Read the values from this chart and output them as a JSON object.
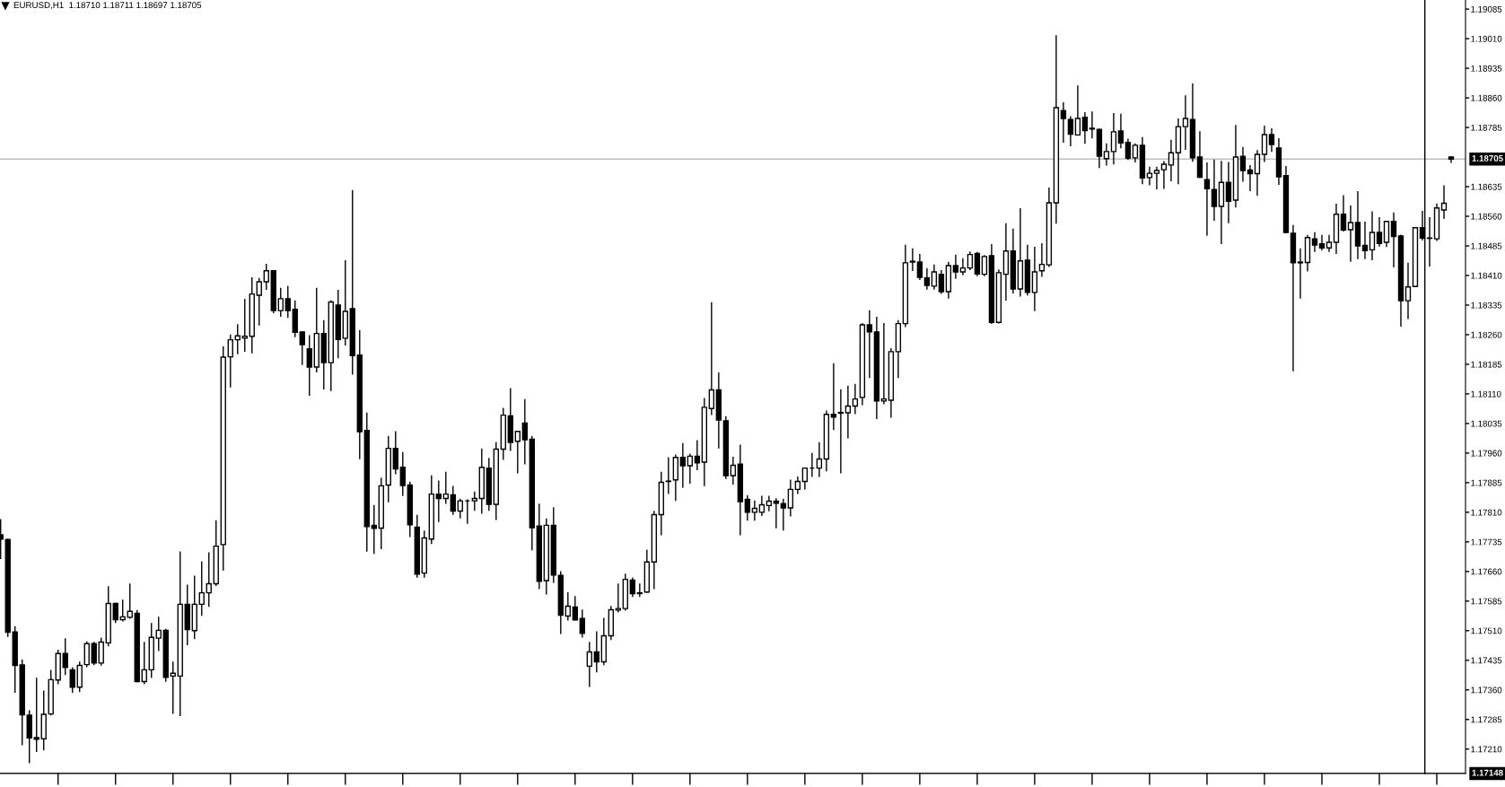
{
  "chart_data": {
    "type": "candlestick",
    "title": "EURUSD,H1  1.18710 1.18711 1.18697 1.18705",
    "color": "#000000",
    "categories": [
      null,
      null,
      null,
      null,
      null,
      null,
      null,
      null,
      null,
      null,
      null,
      null,
      null,
      null,
      null,
      null,
      null,
      null,
      null,
      null,
      null,
      null,
      null,
      null,
      null,
      null,
      null,
      null,
      null,
      null,
      null,
      null,
      null,
      null,
      null,
      null,
      null,
      null,
      null,
      null,
      null,
      null,
      null,
      null,
      null,
      null,
      null,
      null,
      null,
      null,
      null,
      null,
      null,
      null,
      null,
      null,
      null,
      null,
      null,
      null,
      null,
      null,
      null,
      null,
      null,
      null,
      null,
      null,
      null,
      null,
      null,
      null,
      null,
      null,
      null,
      null,
      null,
      null,
      null,
      null,
      null,
      null,
      null,
      null,
      null,
      null,
      null,
      null,
      null,
      null,
      null,
      null,
      null,
      null,
      null,
      null,
      null,
      null,
      null,
      null,
      null,
      null,
      null,
      null,
      null,
      null,
      null,
      null,
      null,
      null,
      null,
      null,
      null,
      null,
      null,
      null,
      null,
      null,
      null,
      null,
      null,
      null,
      null,
      null,
      null,
      null,
      null,
      null,
      null,
      null,
      null,
      null,
      null,
      null,
      null,
      null,
      null,
      null,
      null,
      null,
      null,
      null,
      null,
      null,
      null,
      null,
      null,
      null,
      null,
      null,
      null,
      null,
      null,
      null,
      null,
      null,
      null,
      null,
      null,
      null,
      null,
      null,
      null,
      null,
      null,
      null,
      null,
      null,
      null,
      null,
      null,
      null,
      null,
      null,
      null,
      null,
      null,
      null,
      null,
      null,
      null,
      null,
      null,
      null,
      null,
      null,
      null,
      null,
      null,
      null,
      null,
      null,
      null,
      null,
      null,
      null,
      null,
      null,
      null,
      null,
      null,
      null,
      null
    ],
    "ohlc": [
      [
        1.17753,
        1.17791,
        1.17693,
        1.17742
      ],
      [
        1.17741,
        1.17741,
        1.17496,
        1.17506
      ],
      [
        1.17507,
        1.1752,
        1.17354,
        1.17422
      ],
      [
        1.17423,
        1.17435,
        1.17221,
        1.17297
      ],
      [
        1.17296,
        1.17307,
        1.17176,
        1.17238
      ],
      [
        1.17239,
        1.17389,
        1.17204,
        1.17235
      ],
      [
        1.17236,
        1.17357,
        1.17208,
        1.17298
      ],
      [
        1.17299,
        1.17409,
        1.17297,
        1.17386
      ],
      [
        1.17385,
        1.1746,
        1.17376,
        1.17452
      ],
      [
        1.17452,
        1.17489,
        1.17399,
        1.17417
      ],
      [
        1.17411,
        1.17416,
        1.17354,
        1.17367
      ],
      [
        1.17367,
        1.1743,
        1.17356,
        1.17422
      ],
      [
        1.17424,
        1.17481,
        1.17419,
        1.17477
      ],
      [
        1.17477,
        1.1748,
        1.17424,
        1.17428
      ],
      [
        1.17428,
        1.17491,
        1.17423,
        1.17481
      ],
      [
        1.17479,
        1.17621,
        1.17472,
        1.17579
      ],
      [
        1.17579,
        1.17579,
        1.17531,
        1.17538
      ],
      [
        1.17538,
        1.17587,
        1.17535,
        1.17545
      ],
      [
        1.17544,
        1.17628,
        1.17542,
        1.17559
      ],
      [
        1.17554,
        1.17561,
        1.17381,
        1.17381
      ],
      [
        1.17381,
        1.1748,
        1.17376,
        1.17411
      ],
      [
        1.17411,
        1.17528,
        1.17392,
        1.17493
      ],
      [
        1.17491,
        1.17544,
        1.1746,
        1.17511
      ],
      [
        1.17511,
        1.17513,
        1.17382,
        1.17392
      ],
      [
        1.17395,
        1.1743,
        1.17301,
        1.17402
      ],
      [
        1.17395,
        1.17709,
        1.17295,
        1.17577
      ],
      [
        1.17577,
        1.17625,
        1.17475,
        1.17513
      ],
      [
        1.1751,
        1.17648,
        1.1749,
        1.17577
      ],
      [
        1.17577,
        1.17684,
        1.17549,
        1.17606
      ],
      [
        1.17606,
        1.17707,
        1.17572,
        1.17629
      ],
      [
        1.17629,
        1.17788,
        1.17625,
        1.17724
      ],
      [
        1.17728,
        1.18229,
        1.17664,
        1.18203
      ],
      [
        1.18204,
        1.18259,
        1.18128,
        1.18247
      ],
      [
        1.18247,
        1.18285,
        1.18212,
        1.18257
      ],
      [
        1.18251,
        1.18349,
        1.18218,
        1.18256
      ],
      [
        1.18256,
        1.18404,
        1.18214,
        1.18363
      ],
      [
        1.1836,
        1.18402,
        1.18285,
        1.18394
      ],
      [
        1.18394,
        1.18438,
        1.18375,
        1.18422
      ],
      [
        1.18422,
        1.18422,
        1.18316,
        1.18321
      ],
      [
        1.18321,
        1.18377,
        1.18307,
        1.18351
      ],
      [
        1.18351,
        1.18382,
        1.18304,
        1.18321
      ],
      [
        1.18324,
        1.18345,
        1.18255,
        1.18266
      ],
      [
        1.18267,
        1.18267,
        1.18185,
        1.18235
      ],
      [
        1.18224,
        1.18257,
        1.18107,
        1.18178
      ],
      [
        1.18178,
        1.18377,
        1.18166,
        1.18263
      ],
      [
        1.18263,
        1.18295,
        1.18123,
        1.18189
      ],
      [
        1.18189,
        1.18345,
        1.18119,
        1.18343
      ],
      [
        1.18335,
        1.18372,
        1.18202,
        1.18248
      ],
      [
        1.18251,
        1.18447,
        1.18234,
        1.18319
      ],
      [
        1.18326,
        1.18625,
        1.1816,
        1.18207
      ],
      [
        1.18208,
        1.1827,
        1.17946,
        1.18014
      ],
      [
        1.18017,
        1.18061,
        1.17712,
        1.17774
      ],
      [
        1.17777,
        1.17827,
        1.17706,
        1.17769
      ],
      [
        1.1777,
        1.17896,
        1.17718,
        1.17877
      ],
      [
        1.17879,
        1.18002,
        1.17837,
        1.17972
      ],
      [
        1.17972,
        1.18014,
        1.17908,
        1.1792
      ],
      [
        1.17924,
        1.17961,
        1.17853,
        1.17878
      ],
      [
        1.17879,
        1.17886,
        1.17749,
        1.17778
      ],
      [
        1.17772,
        1.17802,
        1.17646,
        1.17653
      ],
      [
        1.17656,
        1.17762,
        1.17646,
        1.17745
      ],
      [
        1.17742,
        1.17902,
        1.17731,
        1.17856
      ],
      [
        1.17856,
        1.17889,
        1.17787,
        1.17845
      ],
      [
        1.17845,
        1.17911,
        1.17833,
        1.17856
      ],
      [
        1.17854,
        1.17875,
        1.17805,
        1.17813
      ],
      [
        1.17813,
        1.17843,
        1.17796,
        1.17839
      ],
      [
        1.17839,
        1.17841,
        1.17782,
        1.17839
      ],
      [
        1.17839,
        1.17861,
        1.17815,
        1.17845
      ],
      [
        1.17845,
        1.1797,
        1.17808,
        1.17924
      ],
      [
        1.17922,
        1.17946,
        1.17815,
        1.1783
      ],
      [
        1.1783,
        1.17986,
        1.17792,
        1.1797
      ],
      [
        1.1797,
        1.18073,
        1.17944,
        1.18056
      ],
      [
        1.18054,
        1.18123,
        1.17967,
        1.17987
      ],
      [
        1.1799,
        1.18015,
        1.1791,
        1.18015
      ],
      [
        1.18036,
        1.18095,
        1.17933,
        1.17994
      ],
      [
        1.17995,
        1.18002,
        1.17715,
        1.17771
      ],
      [
        1.17775,
        1.1783,
        1.17617,
        1.17635
      ],
      [
        1.17637,
        1.17793,
        1.17603,
        1.17777
      ],
      [
        1.17777,
        1.17821,
        1.17633,
        1.17651
      ],
      [
        1.1765,
        1.17659,
        1.17503,
        1.17549
      ],
      [
        1.17547,
        1.17606,
        1.17537,
        1.17572
      ],
      [
        1.1757,
        1.17596,
        1.17537,
        1.17537
      ],
      [
        1.17541,
        1.17562,
        1.17494,
        1.17503
      ],
      [
        1.1742,
        1.1748,
        1.17369,
        1.17456
      ],
      [
        1.17456,
        1.17507,
        1.17406,
        1.17431
      ],
      [
        1.17431,
        1.17541,
        1.17424,
        1.17497
      ],
      [
        1.17497,
        1.17571,
        1.17488,
        1.17563
      ],
      [
        1.17562,
        1.17628,
        1.17558,
        1.17566
      ],
      [
        1.17566,
        1.17653,
        1.17562,
        1.1764
      ],
      [
        1.17638,
        1.17643,
        1.17597,
        1.17604
      ],
      [
        1.17606,
        1.17628,
        1.17597,
        1.17604
      ],
      [
        1.17608,
        1.17714,
        1.17608,
        1.17684
      ],
      [
        1.17684,
        1.17812,
        1.17617,
        1.17804
      ],
      [
        1.17804,
        1.17911,
        1.17753,
        1.17886
      ],
      [
        1.17888,
        1.17948,
        1.17858,
        1.17889
      ],
      [
        1.17892,
        1.17955,
        1.1784,
        1.17949
      ],
      [
        1.17949,
        1.17984,
        1.17874,
        1.17928
      ],
      [
        1.17928,
        1.17957,
        1.17884,
        1.17952
      ],
      [
        1.17952,
        1.17991,
        1.17918,
        1.17935
      ],
      [
        1.17937,
        1.18098,
        1.17878,
        1.18076
      ],
      [
        1.18073,
        1.18341,
        1.18058,
        1.1812
      ],
      [
        1.1812,
        1.18163,
        1.17973,
        1.18044
      ],
      [
        1.18042,
        1.18052,
        1.17896,
        1.17903
      ],
      [
        1.17903,
        1.17949,
        1.17882,
        1.17929
      ],
      [
        1.17932,
        1.1798,
        1.17753,
        1.17837
      ],
      [
        1.17843,
        1.17852,
        1.1779,
        1.1781
      ],
      [
        1.1781,
        1.17838,
        1.1779,
        1.1782
      ],
      [
        1.1781,
        1.1785,
        1.17802,
        1.17829
      ],
      [
        1.17827,
        1.1785,
        1.17814,
        1.17838
      ],
      [
        1.17838,
        1.17844,
        1.17771,
        1.17833
      ],
      [
        1.17832,
        1.17843,
        1.17765,
        1.17821
      ],
      [
        1.17821,
        1.17891,
        1.17801,
        1.17868
      ],
      [
        1.17868,
        1.17899,
        1.17858,
        1.17888
      ],
      [
        1.17888,
        1.17922,
        1.17869,
        1.17922
      ],
      [
        1.17922,
        1.17959,
        1.17901,
        1.17922
      ],
      [
        1.17922,
        1.17986,
        1.17901,
        1.17945
      ],
      [
        1.17945,
        1.18066,
        1.17915,
        1.18058
      ],
      [
        1.18058,
        1.18186,
        1.1802,
        1.18051
      ],
      [
        1.18063,
        1.1812,
        1.1791,
        1.18061
      ],
      [
        1.18062,
        1.18129,
        1.17999,
        1.18079
      ],
      [
        1.18079,
        1.18134,
        1.1806,
        1.18097
      ],
      [
        1.18101,
        1.18288,
        1.18083,
        1.18285
      ],
      [
        1.18285,
        1.1832,
        1.18152,
        1.18267
      ],
      [
        1.18267,
        1.18304,
        1.18048,
        1.18092
      ],
      [
        1.18092,
        1.18288,
        1.18085,
        1.18097
      ],
      [
        1.18094,
        1.18224,
        1.18051,
        1.18217
      ],
      [
        1.18217,
        1.18295,
        1.18152,
        1.18288
      ],
      [
        1.18288,
        1.18486,
        1.18281,
        1.18442
      ],
      [
        1.18446,
        1.18477,
        1.18423,
        1.18444
      ],
      [
        1.18444,
        1.18463,
        1.184,
        1.18405
      ],
      [
        1.18404,
        1.18427,
        1.18376,
        1.18385
      ],
      [
        1.18383,
        1.18436,
        1.18376,
        1.18419
      ],
      [
        1.18413,
        1.18422,
        1.18365,
        1.18369
      ],
      [
        1.18369,
        1.18443,
        1.18353,
        1.18435
      ],
      [
        1.18435,
        1.18461,
        1.18403,
        1.18419
      ],
      [
        1.18419,
        1.18452,
        1.18412,
        1.18429
      ],
      [
        1.18429,
        1.18469,
        1.18425,
        1.18463
      ],
      [
        1.18466,
        1.18468,
        1.1841,
        1.18414
      ],
      [
        1.18413,
        1.1846,
        1.1841,
        1.18458
      ],
      [
        1.1846,
        1.18488,
        1.18289,
        1.18291
      ],
      [
        1.18291,
        1.18424,
        1.1829,
        1.18417
      ],
      [
        1.18413,
        1.18541,
        1.18348,
        1.18472
      ],
      [
        1.18472,
        1.18527,
        1.18366,
        1.18376
      ],
      [
        1.18376,
        1.18579,
        1.18358,
        1.18447
      ],
      [
        1.18449,
        1.18486,
        1.18361,
        1.18367
      ],
      [
        1.18367,
        1.18481,
        1.18321,
        1.18419
      ],
      [
        1.18422,
        1.1849,
        1.18408,
        1.18438
      ],
      [
        1.18437,
        1.18631,
        1.18433,
        1.18594
      ],
      [
        1.18594,
        1.19017,
        1.18543,
        1.18835
      ],
      [
        1.18828,
        1.18847,
        1.18748,
        1.18808
      ],
      [
        1.18805,
        1.18812,
        1.18739,
        1.18768
      ],
      [
        1.18766,
        1.1889,
        1.18766,
        1.18808
      ],
      [
        1.18811,
        1.18822,
        1.18745,
        1.18777
      ],
      [
        1.18783,
        1.18824,
        1.18759,
        1.18781
      ],
      [
        1.1878,
        1.1878,
        1.18684,
        1.18712
      ],
      [
        1.18706,
        1.18743,
        1.1869,
        1.18724
      ],
      [
        1.18724,
        1.1882,
        1.18693,
        1.18774
      ],
      [
        1.18776,
        1.18818,
        1.18734,
        1.18746
      ],
      [
        1.18747,
        1.18755,
        1.18704,
        1.18707
      ],
      [
        1.18708,
        1.18743,
        1.18698,
        1.1874
      ],
      [
        1.1874,
        1.18759,
        1.18643,
        1.18657
      ],
      [
        1.18658,
        1.18684,
        1.1864,
        1.18669
      ],
      [
        1.18669,
        1.18684,
        1.1863,
        1.18676
      ],
      [
        1.18678,
        1.18698,
        1.18631,
        1.18692
      ],
      [
        1.1869,
        1.18752,
        1.1865,
        1.18721
      ],
      [
        1.18721,
        1.18806,
        1.18643,
        1.18787
      ],
      [
        1.18787,
        1.18865,
        1.1873,
        1.18808
      ],
      [
        1.18805,
        1.18895,
        1.187,
        1.18708
      ],
      [
        1.1871,
        1.18774,
        1.18659,
        1.18659
      ],
      [
        1.18653,
        1.18695,
        1.18512,
        1.1863
      ],
      [
        1.18628,
        1.18702,
        1.1855,
        1.18585
      ],
      [
        1.18585,
        1.18699,
        1.18491,
        1.18646
      ],
      [
        1.18646,
        1.18696,
        1.18544,
        1.18598
      ],
      [
        1.18601,
        1.1879,
        1.18584,
        1.1871
      ],
      [
        1.18712,
        1.18734,
        1.18649,
        1.18676
      ],
      [
        1.18677,
        1.18688,
        1.18625,
        1.18668
      ],
      [
        1.18668,
        1.18726,
        1.18614,
        1.18717
      ],
      [
        1.18717,
        1.18788,
        1.18699,
        1.18767
      ],
      [
        1.18767,
        1.18781,
        1.18725,
        1.18742
      ],
      [
        1.18733,
        1.18756,
        1.18641,
        1.1866
      ],
      [
        1.18663,
        1.18686,
        1.18519,
        1.18519
      ],
      [
        1.18517,
        1.18536,
        1.18169,
        1.18442
      ],
      [
        1.18444,
        1.18477,
        1.18353,
        1.18442
      ],
      [
        1.18443,
        1.18511,
        1.18422,
        1.18506
      ],
      [
        1.18503,
        1.18518,
        1.18471,
        1.18487
      ],
      [
        1.1849,
        1.18511,
        1.18475,
        1.1848
      ],
      [
        1.1848,
        1.18511,
        1.18471,
        1.18494
      ],
      [
        1.18494,
        1.1859,
        1.18466,
        1.18565
      ],
      [
        1.18565,
        1.18612,
        1.18523,
        1.18525
      ],
      [
        1.18526,
        1.18586,
        1.18446,
        1.18544
      ],
      [
        1.18544,
        1.18622,
        1.18453,
        1.18485
      ],
      [
        1.18486,
        1.18545,
        1.18453,
        1.18473
      ],
      [
        1.18475,
        1.18571,
        1.1845,
        1.18519
      ],
      [
        1.18519,
        1.18556,
        1.18485,
        1.18491
      ],
      [
        1.18494,
        1.18547,
        1.18484,
        1.18547
      ],
      [
        1.18547,
        1.18568,
        1.18432,
        1.18509
      ],
      [
        1.1851,
        1.18512,
        1.18282,
        1.18346
      ],
      [
        1.18346,
        1.18441,
        1.18301,
        1.18381
      ],
      [
        1.18382,
        1.18531,
        1.18382,
        1.18531
      ],
      [
        1.18531,
        1.18572,
        1.185,
        1.18505
      ],
      [
        1.18505,
        1.18556,
        1.18434,
        1.18504
      ],
      [
        1.18503,
        1.18591,
        1.18499,
        1.18581
      ],
      [
        1.18576,
        1.18637,
        1.18555,
        1.18593
      ],
      [
        1.1871,
        1.18711,
        1.18697,
        1.18705
      ]
    ],
    "ylim": [
      1.17148,
      1.19108
    ],
    "yticks": [
      {
        "value": 1.1721,
        "label": "1.17210"
      },
      1.17285,
      {
        "value": 1.1736,
        "label": "1.17360"
      },
      1.17435,
      {
        "value": 1.1751,
        "label": "1.17510"
      },
      1.17585,
      {
        "value": 1.1766,
        "label": "1.17660"
      },
      1.17735,
      {
        "value": 1.1781,
        "label": "1.17810"
      },
      1.17885,
      {
        "value": 1.1796,
        "label": "1.17960"
      },
      1.18035,
      {
        "value": 1.1811,
        "label": "1.18110"
      },
      1.18185,
      {
        "value": 1.1826,
        "label": "1.18260"
      },
      1.18335,
      {
        "value": 1.1841,
        "label": "1.18410"
      },
      1.18485,
      {
        "value": 1.1856,
        "label": "1.18560"
      },
      1.18635,
      1.18785,
      {
        "value": 1.1886,
        "label": "1.18860"
      },
      1.18935,
      {
        "value": 1.1901,
        "label": "1.19010"
      },
      1.19085
    ],
    "ref_lines": [
      {
        "axis": "y",
        "value": 1.18705,
        "label": "1.18705",
        "color": "#c0c0c0"
      },
      {
        "axis": "y",
        "value": 1.17148,
        "label": "1.17148",
        "color": "#000000"
      }
    ],
    "tick_labels": "y"
  }
}
